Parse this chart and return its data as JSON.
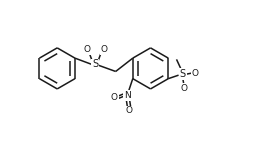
{
  "bg_color": "#ffffff",
  "line_color": "#1a1a1a",
  "lw": 1.1,
  "fs": 6.5,
  "figsize": [
    2.58,
    1.45
  ],
  "dpi": 100,
  "xlim": [
    -1,
    11
  ],
  "ylim": [
    -0.5,
    6.5
  ]
}
